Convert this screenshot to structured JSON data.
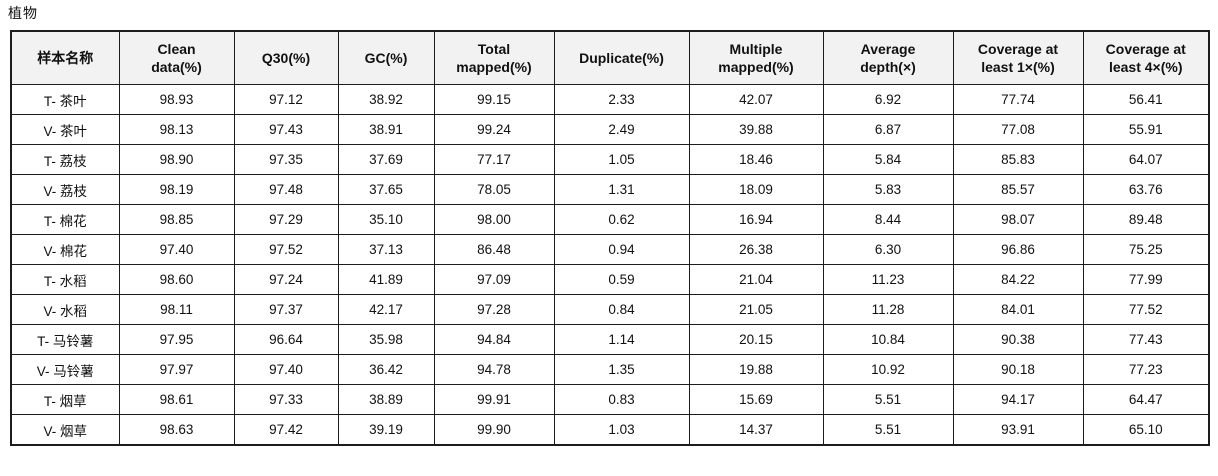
{
  "title": "植物",
  "table": {
    "columns": [
      "样本名称",
      "Clean\ndata(%)",
      "Q30(%)",
      "GC(%)",
      "Total\nmapped(%)",
      "Duplicate(%)",
      "Multiple\nmapped(%)",
      "Average\ndepth(×)",
      "Coverage at\nleast 1×(%)",
      "Coverage at\nleast 4×(%)"
    ],
    "rows": [
      [
        "T- 茶叶",
        "98.93",
        "97.12",
        "38.92",
        "99.15",
        "2.33",
        "42.07",
        "6.92",
        "77.74",
        "56.41"
      ],
      [
        "V- 茶叶",
        "98.13",
        "97.43",
        "38.91",
        "99.24",
        "2.49",
        "39.88",
        "6.87",
        "77.08",
        "55.91"
      ],
      [
        "T- 荔枝",
        "98.90",
        "97.35",
        "37.69",
        "77.17",
        "1.05",
        "18.46",
        "5.84",
        "85.83",
        "64.07"
      ],
      [
        "V- 荔枝",
        "98.19",
        "97.48",
        "37.65",
        "78.05",
        "1.31",
        "18.09",
        "5.83",
        "85.57",
        "63.76"
      ],
      [
        "T- 棉花",
        "98.85",
        "97.29",
        "35.10",
        "98.00",
        "0.62",
        "16.94",
        "8.44",
        "98.07",
        "89.48"
      ],
      [
        "V- 棉花",
        "97.40",
        "97.52",
        "37.13",
        "86.48",
        "0.94",
        "26.38",
        "6.30",
        "96.86",
        "75.25"
      ],
      [
        "T- 水稻",
        "98.60",
        "97.24",
        "41.89",
        "97.09",
        "0.59",
        "21.04",
        "11.23",
        "84.22",
        "77.99"
      ],
      [
        "V- 水稻",
        "98.11",
        "97.37",
        "42.17",
        "97.28",
        "0.84",
        "21.05",
        "11.28",
        "84.01",
        "77.52"
      ],
      [
        "T- 马铃薯",
        "97.95",
        "96.64",
        "35.98",
        "94.84",
        "1.14",
        "20.15",
        "10.84",
        "90.38",
        "77.43"
      ],
      [
        "V- 马铃薯",
        "97.97",
        "97.40",
        "36.42",
        "94.78",
        "1.35",
        "19.88",
        "10.92",
        "90.18",
        "77.23"
      ],
      [
        "T- 烟草",
        "98.61",
        "97.33",
        "38.89",
        "99.91",
        "0.83",
        "15.69",
        "5.51",
        "94.17",
        "64.47"
      ],
      [
        "V- 烟草",
        "98.63",
        "97.42",
        "39.19",
        "99.90",
        "1.03",
        "14.37",
        "5.51",
        "93.91",
        "65.10"
      ]
    ]
  },
  "colors": {
    "border": "#1c1c1c",
    "header_background": "#f2f2f2",
    "text": "#111111"
  }
}
